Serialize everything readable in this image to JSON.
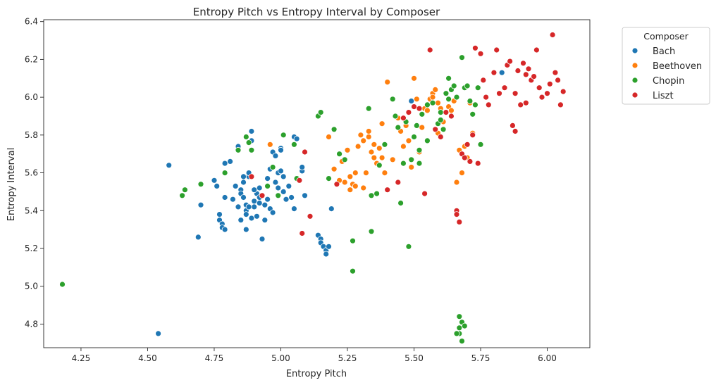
{
  "chart_data": {
    "type": "scatter",
    "title": "Entropy Pitch vs Entropy Interval by Composer",
    "xlabel": "Entropy Pitch",
    "ylabel": "Entropy Interval",
    "xlim": [
      4.11,
      6.16
    ],
    "ylim": [
      4.675,
      6.41
    ],
    "xticks": [
      "4.25",
      "4.50",
      "4.75",
      "5.00",
      "5.25",
      "5.50",
      "5.75",
      "6.00"
    ],
    "yticks": [
      "4.8",
      "5.0",
      "5.2",
      "5.4",
      "5.6",
      "5.8",
      "6.0",
      "6.2",
      "6.4"
    ],
    "grid": false,
    "legend": {
      "title": "Composer",
      "placement": "outside-top-right"
    },
    "series": [
      {
        "name": "Bach",
        "color": "#1f77b4",
        "points": [
          [
            4.54,
            4.75
          ],
          [
            4.58,
            5.64
          ],
          [
            4.69,
            5.26
          ],
          [
            4.7,
            5.43
          ],
          [
            4.75,
            5.56
          ],
          [
            4.76,
            5.53
          ],
          [
            4.77,
            5.38
          ],
          [
            4.77,
            5.35
          ],
          [
            4.78,
            5.33
          ],
          [
            4.78,
            5.31
          ],
          [
            4.79,
            5.3
          ],
          [
            4.79,
            5.47
          ],
          [
            4.79,
            5.65
          ],
          [
            4.81,
            5.66
          ],
          [
            4.82,
            5.46
          ],
          [
            4.83,
            5.53
          ],
          [
            4.84,
            5.74
          ],
          [
            4.85,
            5.51
          ],
          [
            4.85,
            5.49
          ],
          [
            4.86,
            5.47
          ],
          [
            4.86,
            5.55
          ],
          [
            4.87,
            5.43
          ],
          [
            4.87,
            5.4
          ],
          [
            4.87,
            5.38
          ],
          [
            4.87,
            5.3
          ],
          [
            4.88,
            5.58
          ],
          [
            4.88,
            5.6
          ],
          [
            4.89,
            5.77
          ],
          [
            4.89,
            5.82
          ],
          [
            4.9,
            5.42
          ],
          [
            4.9,
            5.45
          ],
          [
            4.91,
            5.49
          ],
          [
            4.92,
            5.52
          ],
          [
            4.92,
            5.47
          ],
          [
            4.93,
            5.25
          ],
          [
            4.93,
            5.25
          ],
          [
            4.94,
            5.43
          ],
          [
            4.95,
            5.57
          ],
          [
            4.96,
            5.62
          ],
          [
            4.97,
            5.71
          ],
          [
            4.98,
            5.69
          ],
          [
            4.98,
            5.55
          ],
          [
            4.99,
            5.52
          ],
          [
            4.99,
            5.6
          ],
          [
            5.0,
            5.73
          ],
          [
            5.0,
            5.72
          ],
          [
            5.0,
            5.61
          ],
          [
            5.01,
            5.58
          ],
          [
            5.01,
            5.5
          ],
          [
            5.02,
            5.46
          ],
          [
            5.03,
            5.53
          ],
          [
            5.04,
            5.47
          ],
          [
            5.05,
            5.41
          ],
          [
            5.05,
            5.79
          ],
          [
            5.06,
            5.78
          ],
          [
            5.08,
            5.61
          ],
          [
            5.08,
            5.63
          ],
          [
            5.09,
            5.48
          ],
          [
            5.14,
            5.27
          ],
          [
            5.15,
            5.25
          ],
          [
            5.15,
            5.23
          ],
          [
            5.16,
            5.21
          ],
          [
            5.17,
            5.19
          ],
          [
            5.17,
            5.17
          ],
          [
            5.18,
            5.21
          ],
          [
            5.19,
            5.41
          ],
          [
            5.49,
            5.98
          ],
          [
            5.83,
            6.13
          ],
          [
            4.88,
            5.42
          ],
          [
            4.9,
            5.51
          ],
          [
            4.86,
            5.58
          ],
          [
            4.91,
            5.37
          ],
          [
            4.95,
            5.46
          ],
          [
            4.96,
            5.41
          ],
          [
            4.97,
            5.39
          ],
          [
            4.84,
            5.42
          ],
          [
            4.85,
            5.35
          ],
          [
            4.89,
            5.36
          ],
          [
            4.94,
            5.35
          ],
          [
            4.92,
            5.44
          ]
        ]
      },
      {
        "name": "Beethoven",
        "color": "#ff7f0e",
        "points": [
          [
            4.96,
            5.75
          ],
          [
            5.18,
            5.79
          ],
          [
            5.2,
            5.62
          ],
          [
            5.22,
            5.56
          ],
          [
            5.23,
            5.66
          ],
          [
            5.24,
            5.55
          ],
          [
            5.25,
            5.72
          ],
          [
            5.26,
            5.58
          ],
          [
            5.26,
            5.51
          ],
          [
            5.27,
            5.54
          ],
          [
            5.28,
            5.6
          ],
          [
            5.29,
            5.74
          ],
          [
            5.3,
            5.8
          ],
          [
            5.31,
            5.77
          ],
          [
            5.32,
            5.6
          ],
          [
            5.33,
            5.82
          ],
          [
            5.34,
            5.71
          ],
          [
            5.35,
            5.75
          ],
          [
            5.36,
            5.65
          ],
          [
            5.37,
            5.73
          ],
          [
            5.38,
            5.68
          ],
          [
            5.38,
            5.86
          ],
          [
            5.39,
            5.6
          ],
          [
            5.4,
            6.08
          ],
          [
            5.42,
            5.67
          ],
          [
            5.44,
            5.89
          ],
          [
            5.45,
            5.82
          ],
          [
            5.46,
            5.74
          ],
          [
            5.47,
            5.85
          ],
          [
            5.48,
            5.77
          ],
          [
            5.49,
            5.63
          ],
          [
            5.5,
            6.1
          ],
          [
            5.51,
            5.99
          ],
          [
            5.52,
            5.71
          ],
          [
            5.53,
            5.84
          ],
          [
            5.54,
            5.94
          ],
          [
            5.55,
            5.93
          ],
          [
            5.56,
            5.99
          ],
          [
            5.57,
            6.02
          ],
          [
            5.58,
            6.04
          ],
          [
            5.59,
            5.81
          ],
          [
            5.6,
            5.94
          ],
          [
            5.61,
            5.87
          ],
          [
            5.62,
            5.92
          ],
          [
            5.63,
            5.95
          ],
          [
            5.64,
            5.93
          ],
          [
            5.65,
            5.98
          ],
          [
            5.66,
            5.55
          ],
          [
            5.67,
            5.72
          ],
          [
            5.68,
            5.6
          ],
          [
            5.69,
            5.74
          ],
          [
            5.7,
            5.68
          ],
          [
            5.71,
            5.97
          ],
          [
            5.72,
            5.81
          ],
          [
            5.35,
            5.68
          ],
          [
            5.31,
            5.52
          ],
          [
            5.28,
            5.53
          ],
          [
            5.57,
            6.0
          ],
          [
            5.59,
            5.97
          ],
          [
            5.33,
            5.79
          ]
        ]
      },
      {
        "name": "Chopin",
        "color": "#2ca02c",
        "points": [
          [
            4.18,
            5.01
          ],
          [
            4.63,
            5.48
          ],
          [
            4.64,
            5.51
          ],
          [
            4.7,
            5.54
          ],
          [
            4.79,
            5.6
          ],
          [
            4.84,
            5.72
          ],
          [
            4.87,
            5.79
          ],
          [
            4.88,
            5.76
          ],
          [
            4.89,
            5.72
          ],
          [
            4.95,
            5.53
          ],
          [
            4.97,
            5.63
          ],
          [
            4.99,
            5.48
          ],
          [
            5.01,
            5.8
          ],
          [
            5.05,
            5.75
          ],
          [
            5.06,
            5.57
          ],
          [
            5.14,
            5.9
          ],
          [
            5.15,
            5.92
          ],
          [
            5.18,
            5.57
          ],
          [
            5.2,
            5.83
          ],
          [
            5.22,
            5.7
          ],
          [
            5.24,
            5.67
          ],
          [
            5.27,
            5.24
          ],
          [
            5.27,
            5.08
          ],
          [
            5.33,
            5.94
          ],
          [
            5.34,
            5.48
          ],
          [
            5.34,
            5.29
          ],
          [
            5.36,
            5.49
          ],
          [
            5.37,
            5.64
          ],
          [
            5.39,
            5.75
          ],
          [
            5.42,
            5.99
          ],
          [
            5.43,
            5.9
          ],
          [
            5.45,
            5.44
          ],
          [
            5.46,
            5.65
          ],
          [
            5.47,
            5.87
          ],
          [
            5.48,
            5.21
          ],
          [
            5.49,
            5.67
          ],
          [
            5.5,
            5.79
          ],
          [
            5.51,
            5.85
          ],
          [
            5.52,
            5.72
          ],
          [
            5.53,
            5.91
          ],
          [
            5.55,
            5.77
          ],
          [
            5.57,
            5.97
          ],
          [
            5.59,
            5.86
          ],
          [
            5.6,
            5.92
          ],
          [
            5.61,
            5.83
          ],
          [
            5.62,
            6.02
          ],
          [
            5.63,
            6.1
          ],
          [
            5.64,
            6.04
          ],
          [
            5.65,
            6.06
          ],
          [
            5.66,
            6.0
          ],
          [
            5.67,
            4.84
          ],
          [
            5.67,
            4.78
          ],
          [
            5.67,
            4.75
          ],
          [
            5.68,
            4.71
          ],
          [
            5.68,
            4.81
          ],
          [
            5.69,
            4.79
          ],
          [
            5.66,
            4.75
          ],
          [
            5.68,
            6.21
          ],
          [
            5.69,
            6.05
          ],
          [
            5.7,
            6.06
          ],
          [
            5.71,
            5.98
          ],
          [
            5.72,
            5.91
          ],
          [
            5.73,
            5.96
          ],
          [
            5.74,
            6.05
          ],
          [
            5.75,
            5.75
          ],
          [
            5.44,
            5.84
          ],
          [
            5.52,
            5.65
          ],
          [
            5.55,
            5.96
          ],
          [
            5.6,
            5.88
          ],
          [
            5.63,
            5.99
          ]
        ]
      },
      {
        "name": "Liszt",
        "color": "#d62728",
        "points": [
          [
            4.89,
            5.58
          ],
          [
            4.93,
            5.48
          ],
          [
            5.07,
            5.56
          ],
          [
            5.08,
            5.28
          ],
          [
            5.09,
            5.71
          ],
          [
            5.11,
            5.37
          ],
          [
            5.21,
            5.54
          ],
          [
            5.4,
            5.51
          ],
          [
            5.44,
            5.55
          ],
          [
            5.46,
            5.89
          ],
          [
            5.48,
            5.92
          ],
          [
            5.5,
            5.95
          ],
          [
            5.52,
            5.94
          ],
          [
            5.54,
            5.49
          ],
          [
            5.56,
            6.25
          ],
          [
            5.58,
            5.83
          ],
          [
            5.6,
            5.79
          ],
          [
            5.62,
            5.92
          ],
          [
            5.64,
            5.9
          ],
          [
            5.66,
            5.4
          ],
          [
            5.66,
            5.38
          ],
          [
            5.67,
            5.34
          ],
          [
            5.68,
            5.7
          ],
          [
            5.69,
            5.68
          ],
          [
            5.7,
            5.75
          ],
          [
            5.71,
            5.66
          ],
          [
            5.72,
            5.8
          ],
          [
            5.73,
            6.26
          ],
          [
            5.74,
            5.65
          ],
          [
            5.75,
            6.23
          ],
          [
            5.76,
            6.09
          ],
          [
            5.77,
            6.0
          ],
          [
            5.78,
            5.96
          ],
          [
            5.8,
            6.13
          ],
          [
            5.81,
            6.25
          ],
          [
            5.82,
            6.02
          ],
          [
            5.84,
            6.05
          ],
          [
            5.85,
            6.17
          ],
          [
            5.86,
            6.19
          ],
          [
            5.87,
            5.85
          ],
          [
            5.88,
            5.82
          ],
          [
            5.89,
            6.14
          ],
          [
            5.9,
            5.96
          ],
          [
            5.91,
            6.18
          ],
          [
            5.92,
            6.12
          ],
          [
            5.93,
            6.15
          ],
          [
            5.94,
            6.09
          ],
          [
            5.95,
            6.11
          ],
          [
            5.96,
            6.25
          ],
          [
            5.97,
            6.05
          ],
          [
            5.98,
            6.0
          ],
          [
            6.0,
            6.02
          ],
          [
            6.01,
            6.07
          ],
          [
            6.02,
            6.33
          ],
          [
            6.03,
            6.13
          ],
          [
            6.04,
            6.09
          ],
          [
            6.05,
            5.96
          ],
          [
            6.06,
            6.03
          ],
          [
            5.92,
            5.97
          ],
          [
            5.88,
            6.02
          ]
        ]
      }
    ]
  }
}
